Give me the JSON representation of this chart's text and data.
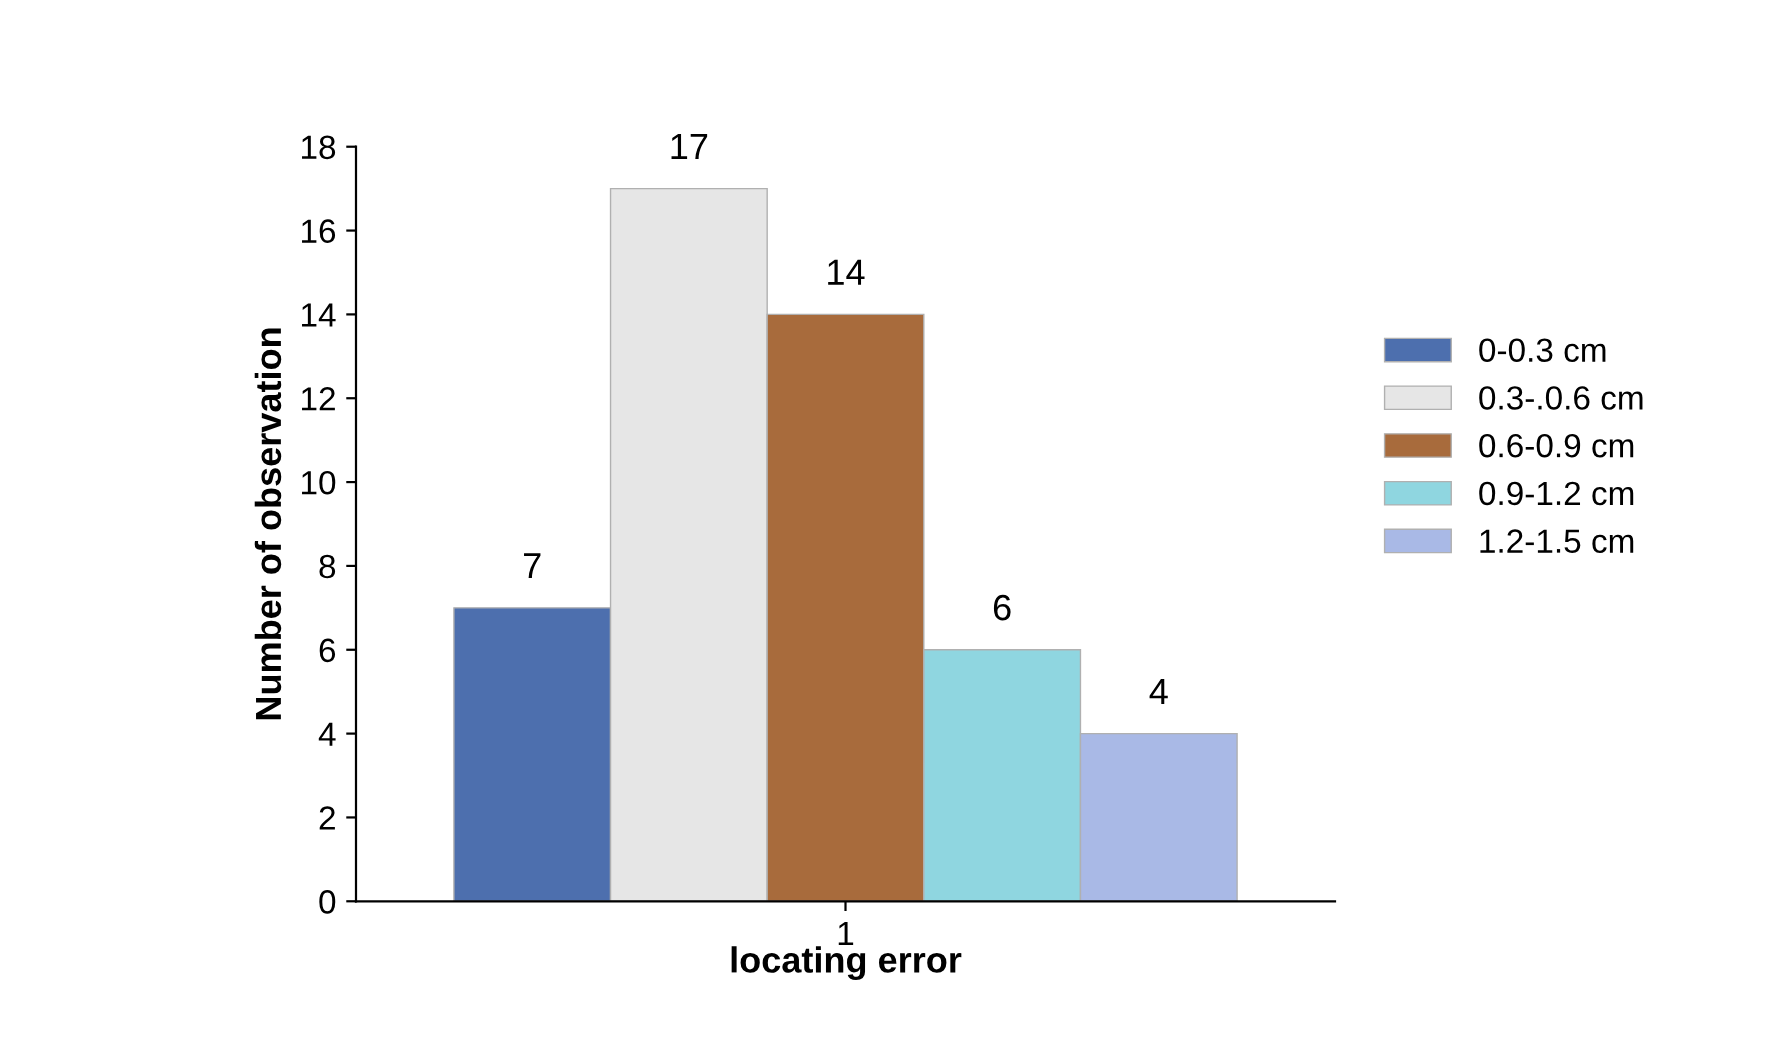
{
  "chart_data": {
    "type": "bar",
    "xlabel": "locating error",
    "ylabel": "Number of observation",
    "categories": [
      "1"
    ],
    "series": [
      {
        "name": "0-0.3 cm",
        "color": "#4d6fae",
        "values": [
          7
        ]
      },
      {
        "name": "0.3-.0.6 cm",
        "color": "#e6e6e6",
        "values": [
          17
        ]
      },
      {
        "name": "0.6-0.9 cm",
        "color": "#a86b3c",
        "values": [
          14
        ]
      },
      {
        "name": "0.9-1.2 cm",
        "color": "#8fd6e0",
        "values": [
          6
        ]
      },
      {
        "name": "1.2-1.5 cm",
        "color": "#a9b9e6",
        "values": [
          4
        ]
      }
    ],
    "ylim": [
      0,
      18
    ],
    "yticks": [
      0,
      2,
      4,
      6,
      8,
      10,
      12,
      14,
      16,
      18
    ],
    "grid": false,
    "legend": "right",
    "data_labels": true
  }
}
